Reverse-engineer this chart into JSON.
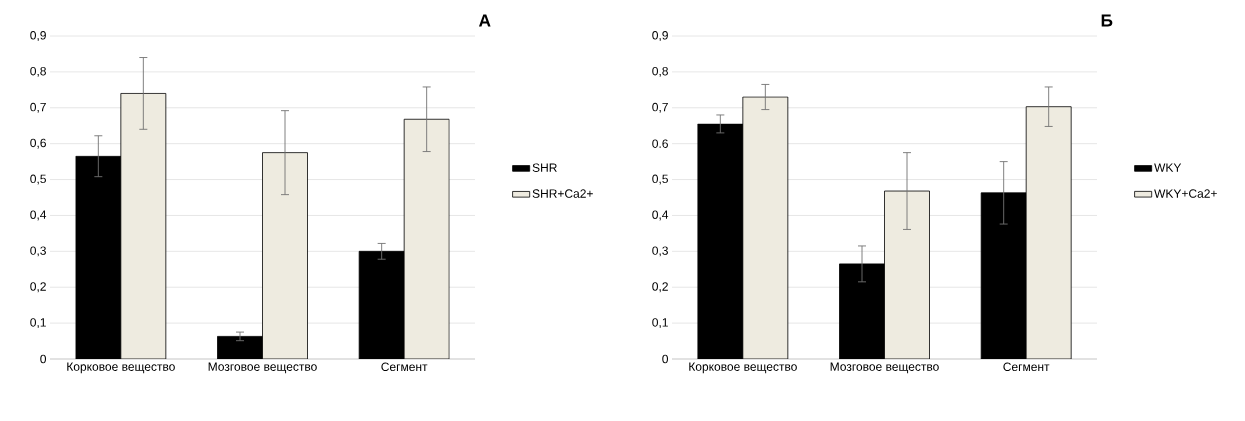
{
  "chart_data": [
    {
      "type": "bar",
      "title": "А",
      "categories": [
        "Корковое вещество",
        "Мозговое вещество",
        "Сегмент"
      ],
      "series": [
        {
          "name": "SHR",
          "color": "#000000",
          "values": [
            0.565,
            0.063,
            0.3
          ],
          "errors": [
            0.057,
            0.012,
            0.022
          ]
        },
        {
          "name": "SHR+Ca2+",
          "color": "#eeebe0",
          "values": [
            0.74,
            0.575,
            0.668
          ],
          "errors": [
            0.1,
            0.117,
            0.09
          ]
        }
      ],
      "ylim": [
        0,
        0.9
      ],
      "yticks": [
        0,
        {
          "value": 0.1,
          "label": "0,1"
        },
        {
          "value": 0.2,
          "label": "0,2"
        },
        {
          "value": 0.3,
          "label": "0,3"
        },
        {
          "value": 0.4,
          "label": "0,4"
        },
        {
          "value": 0.5,
          "label": "0,5"
        },
        {
          "value": 0.6,
          "label": "0,6"
        },
        {
          "value": 0.7,
          "label": "0,7"
        },
        {
          "value": 0.8,
          "label": "0,8"
        },
        {
          "value": 0.9,
          "label": "0,9"
        }
      ],
      "grid": "y",
      "legend": "right"
    },
    {
      "type": "bar",
      "title": "Б",
      "categories": [
        "Корковое вещество",
        "Мозговое вещество",
        "Сегмент"
      ],
      "series": [
        {
          "name": "WKY",
          "color": "#000000",
          "values": [
            0.655,
            0.265,
            0.463
          ],
          "errors": [
            0.025,
            0.05,
            0.087
          ]
        },
        {
          "name": "WKY+Ca2+",
          "color": "#eeebe0",
          "values": [
            0.73,
            0.468,
            0.703
          ],
          "errors": [
            0.035,
            0.107,
            0.055
          ]
        }
      ],
      "ylim": [
        0,
        0.9
      ],
      "yticks": [
        0,
        {
          "value": 0.1,
          "label": "0,1"
        },
        {
          "value": 0.2,
          "label": "0,2"
        },
        {
          "value": 0.3,
          "label": "0,3"
        },
        {
          "value": 0.4,
          "label": "0,4"
        },
        {
          "value": 0.5,
          "label": "0,5"
        },
        {
          "value": 0.6,
          "label": "0.6"
        },
        {
          "value": 0.7,
          "label": "0,7"
        },
        {
          "value": 0.8,
          "label": "0,8"
        },
        {
          "value": 0.9,
          "label": "0,9"
        }
      ],
      "grid": "y",
      "legend": "right"
    }
  ]
}
